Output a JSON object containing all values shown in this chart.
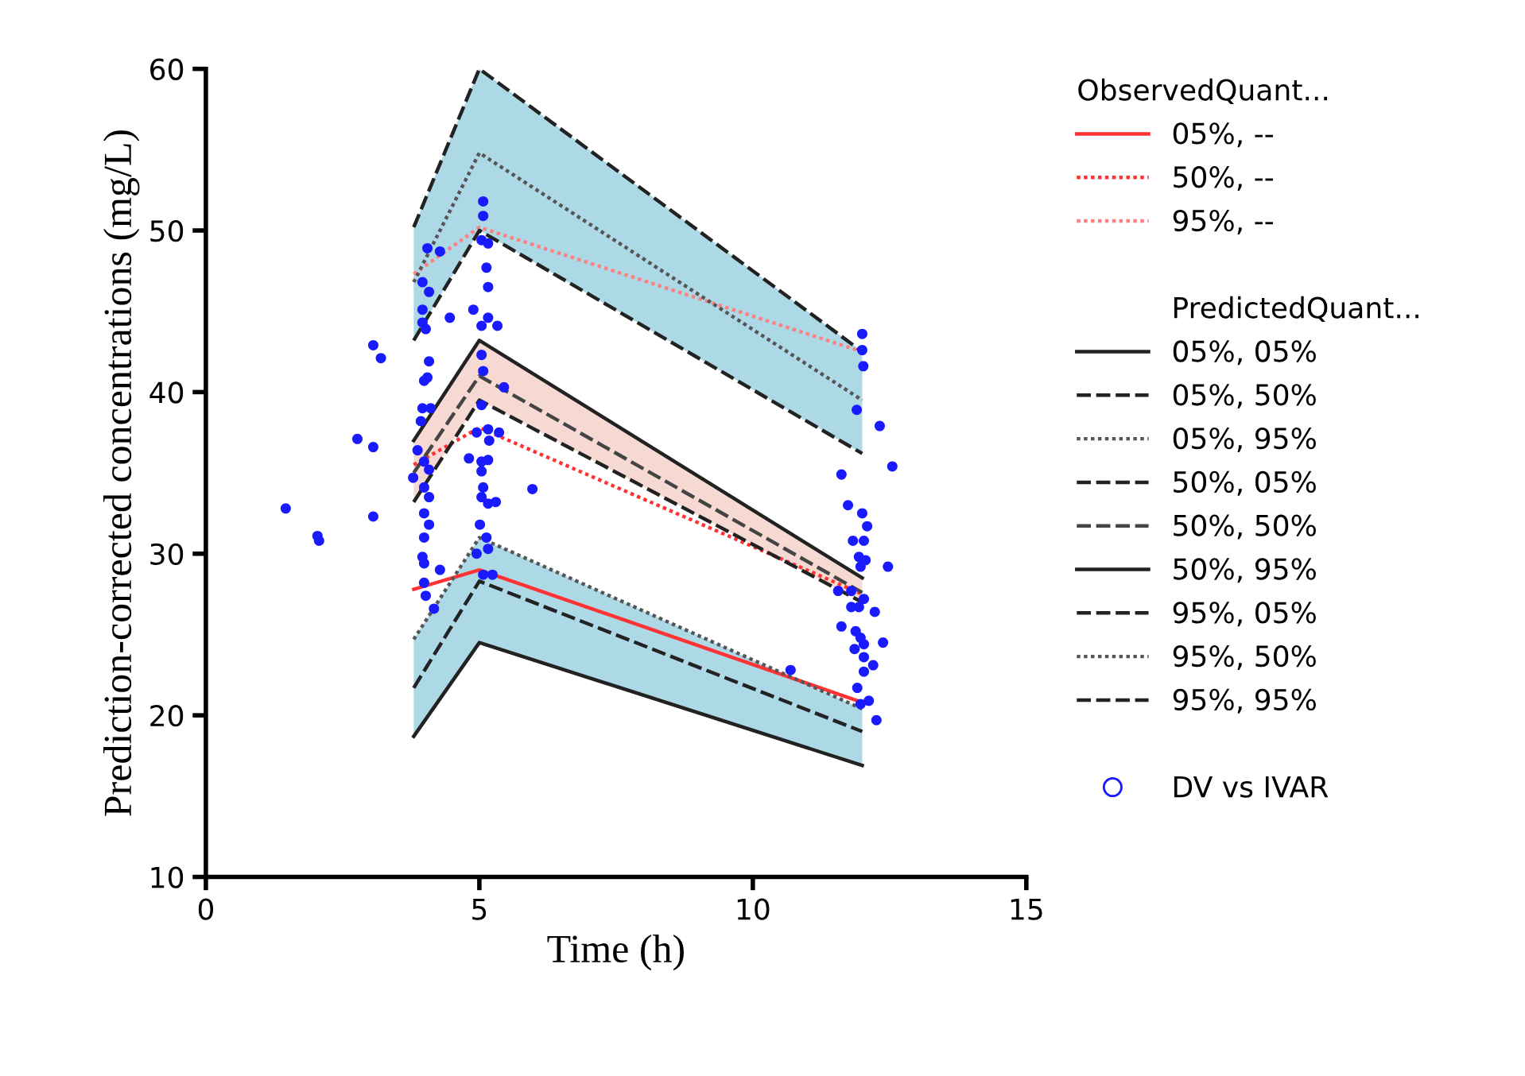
{
  "chart_data": {
    "type": "line",
    "xlabel": "Time (h)",
    "ylabel": "Prediction-corrected concentrations (mg/L)",
    "xlim": [
      0,
      15
    ],
    "xticks": [
      0,
      5,
      10,
      15
    ],
    "ylim": [
      10,
      60
    ],
    "yticks": [
      10,
      20,
      30,
      40,
      50,
      60
    ],
    "grid": false,
    "legend": "right",
    "legend_title": "ObservedQuant...",
    "annotations": [
      "PredictedQuant..."
    ],
    "x": [
      3.8,
      5.0,
      12.0
    ],
    "series": [
      {
        "name": "05%, --",
        "color": "#ff3333",
        "line_style": "solid",
        "values": [
          27.8,
          29.0,
          20.8
        ]
      },
      {
        "name": "50%, --",
        "color": "#ff3333",
        "line_style": "dotted",
        "values": [
          35.5,
          37.8,
          27.5
        ]
      },
      {
        "name": "95%, --",
        "color": "#ff8080",
        "line_style": "dotted",
        "values": [
          47.3,
          50.2,
          42.5
        ]
      },
      {
        "name": "05%, 05%",
        "color": "#222222",
        "line_style": "solid",
        "values": [
          18.7,
          24.5,
          16.9
        ]
      },
      {
        "name": "05%, 50%",
        "color": "#222222",
        "line_style": "dashed",
        "values": [
          21.7,
          28.3,
          19.0
        ],
        "lower": [
          18.7,
          24.5,
          16.9
        ],
        "upper": [
          24.7,
          31.0,
          20.4
        ]
      },
      {
        "name": "05%, 95%",
        "color": "#555555",
        "line_style": "dotted",
        "values": [
          24.7,
          31.0,
          20.4
        ]
      },
      {
        "name": "50%, 05%",
        "color": "#222222",
        "line_style": "dashed",
        "values": [
          33.2,
          39.5,
          27.0
        ]
      },
      {
        "name": "50%, 50%",
        "color": "#444444",
        "line_style": "dashed",
        "values": [
          35.0,
          41.0,
          27.6
        ],
        "lower": [
          33.2,
          39.5,
          27.0
        ],
        "upper": [
          37.0,
          43.2,
          28.5
        ]
      },
      {
        "name": "50%, 95%",
        "color": "#222222",
        "line_style": "solid",
        "values": [
          37.0,
          43.2,
          28.5
        ]
      },
      {
        "name": "95%, 05%",
        "color": "#222222",
        "line_style": "dashed",
        "values": [
          43.2,
          50.0,
          36.2
        ]
      },
      {
        "name": "95%, 50%",
        "color": "#555555",
        "line_style": "dotted",
        "values": [
          46.8,
          54.8,
          39.5
        ],
        "lower": [
          43.2,
          50.0,
          36.2
        ],
        "upper": [
          50.2,
          60.0,
          42.5
        ]
      },
      {
        "name": "95%, 95%",
        "color": "#222222",
        "line_style": "dashed",
        "values": [
          50.2,
          60.0,
          42.5
        ]
      },
      {
        "name": "DV vs IVAR",
        "type": "scatter",
        "marker": "circle",
        "color": "#1a1aff",
        "x": [
          5.07,
          5.07,
          5.04,
          5.16,
          4.05,
          4.28,
          5.13,
          5.16,
          3.96,
          4.08,
          3.96,
          4.89,
          4.46,
          5.16,
          5.04,
          5.33,
          3.96,
          4.02,
          3.06,
          3.2,
          5.04,
          5.07,
          4.08,
          4.05,
          3.99,
          5.45,
          3.96,
          4.11,
          3.93,
          5.04,
          4.95,
          5.16,
          5.36,
          5.18,
          2.77,
          3.06,
          3.87,
          3.99,
          3.79,
          4.08,
          4.81,
          5.04,
          5.16,
          5.04,
          5.97,
          3.99,
          4.08,
          5.07,
          5.04,
          5.16,
          5.3,
          1.46,
          3.06,
          2.04,
          2.07,
          3.99,
          4.08,
          3.99,
          3.96,
          3.99,
          5.01,
          5.13,
          4.95,
          5.16,
          5.07,
          5.24,
          4.28,
          3.99,
          4.02,
          4.17,
          12.55,
          11.62,
          11.74,
          12.0,
          12.09,
          11.83,
          12.03,
          11.94,
          12.06,
          11.97,
          12.47,
          11.56,
          11.8,
          12.03,
          11.94,
          11.8,
          12.23,
          11.62,
          11.88,
          11.97,
          12.03,
          12.38,
          11.86,
          12.03,
          12.2,
          12.03,
          11.91,
          12.12,
          11.97,
          12.26,
          12.0,
          12.0,
          12.02,
          11.9,
          12.32,
          10.69
        ],
        "values": [
          51.8,
          50.9,
          49.4,
          49.2,
          48.9,
          48.7,
          47.7,
          46.5,
          46.8,
          46.2,
          45.1,
          45.1,
          44.6,
          44.6,
          44.1,
          44.1,
          44.3,
          43.9,
          42.9,
          42.1,
          42.3,
          41.3,
          41.9,
          40.9,
          40.7,
          40.3,
          39.0,
          39.0,
          38.2,
          39.2,
          37.5,
          37.7,
          37.5,
          37.0,
          37.1,
          36.6,
          36.4,
          35.7,
          34.7,
          35.2,
          35.9,
          35.7,
          35.8,
          35.1,
          34.0,
          34.1,
          33.5,
          34.1,
          33.5,
          33.1,
          33.2,
          32.8,
          32.3,
          31.1,
          30.8,
          32.5,
          31.8,
          31.0,
          29.8,
          29.4,
          31.8,
          31.0,
          30.0,
          30.3,
          28.7,
          28.7,
          29.0,
          28.2,
          27.4,
          26.6,
          35.4,
          34.9,
          33.0,
          32.5,
          31.7,
          30.8,
          30.8,
          29.8,
          29.6,
          29.2,
          29.2,
          27.7,
          27.7,
          27.2,
          26.7,
          26.7,
          26.4,
          25.5,
          25.2,
          24.8,
          24.4,
          24.5,
          24.1,
          23.6,
          23.1,
          22.7,
          21.7,
          20.9,
          20.7,
          19.7,
          43.6,
          42.6,
          41.6,
          38.9,
          37.9,
          22.8
        ]
      }
    ]
  }
}
